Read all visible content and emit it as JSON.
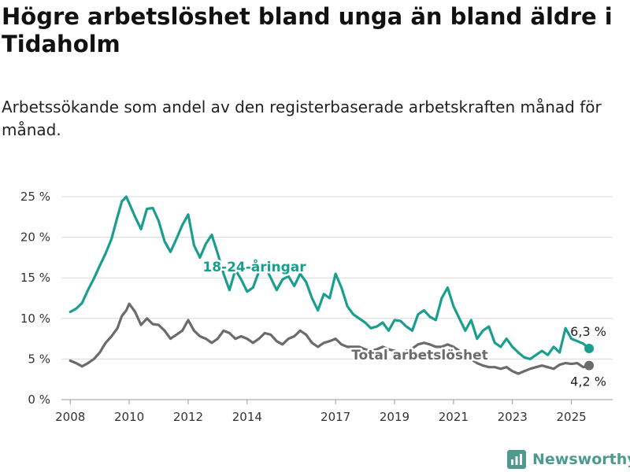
{
  "title": "Högre arbetslöshet bland unga än bland äldre i Tidaholm",
  "subtitle": "Arbetssökande som andel av den registerbaserade arbetskraften månad för månad.",
  "brand": {
    "name": "Newsworthy",
    "color": "#4e9a8f"
  },
  "chart_data": {
    "type": "line",
    "y_ticks": [
      "0 %",
      "5 %",
      "10 %",
      "15 %",
      "20 %",
      "25 %"
    ],
    "y_tick_values": [
      0,
      5,
      10,
      15,
      20,
      25
    ],
    "ylim": [
      0,
      25
    ],
    "x_ticks": [
      "2008",
      "2010",
      "2012",
      "2014",
      "2017",
      "2019",
      "2021",
      "2023",
      "2025"
    ],
    "x_tick_values": [
      2008,
      2010,
      2012,
      2014,
      2017,
      2019,
      2021,
      2023,
      2025
    ],
    "xlim": [
      2007.7,
      2026.4
    ],
    "grid": true,
    "series": [
      {
        "name": "18-24-åringar",
        "color": "#1a9e8e",
        "end_label": "6,3 %",
        "x": [
          2008.0,
          2008.2,
          2008.4,
          2008.6,
          2008.8,
          2009.0,
          2009.2,
          2009.4,
          2009.6,
          2009.75,
          2009.9,
          2010.0,
          2010.2,
          2010.4,
          2010.6,
          2010.8,
          2011.0,
          2011.2,
          2011.4,
          2011.6,
          2011.8,
          2012.0,
          2012.2,
          2012.4,
          2012.6,
          2012.8,
          2013.0,
          2013.2,
          2013.4,
          2013.6,
          2013.8,
          2014.0,
          2014.2,
          2014.4,
          2014.6,
          2014.8,
          2015.0,
          2015.2,
          2015.4,
          2015.6,
          2015.8,
          2016.0,
          2016.2,
          2016.4,
          2016.6,
          2016.8,
          2017.0,
          2017.2,
          2017.4,
          2017.6,
          2017.8,
          2018.0,
          2018.2,
          2018.4,
          2018.6,
          2018.8,
          2019.0,
          2019.2,
          2019.4,
          2019.6,
          2019.8,
          2020.0,
          2020.2,
          2020.4,
          2020.6,
          2020.8,
          2021.0,
          2021.2,
          2021.4,
          2021.6,
          2021.8,
          2022.0,
          2022.2,
          2022.4,
          2022.6,
          2022.8,
          2023.0,
          2023.2,
          2023.4,
          2023.6,
          2023.8,
          2024.0,
          2024.2,
          2024.4,
          2024.6,
          2024.8,
          2025.0,
          2025.2,
          2025.4,
          2025.6
        ],
        "y": [
          10.8,
          11.2,
          11.9,
          13.5,
          14.9,
          16.5,
          18.0,
          19.8,
          22.5,
          24.4,
          25.0,
          24.2,
          22.5,
          21.0,
          23.5,
          23.6,
          22.0,
          19.5,
          18.2,
          19.8,
          21.5,
          22.8,
          19.0,
          17.5,
          19.2,
          20.3,
          18.0,
          15.5,
          13.5,
          16.0,
          14.8,
          13.3,
          13.8,
          15.8,
          16.5,
          15.0,
          13.5,
          14.8,
          15.2,
          14.0,
          15.5,
          14.5,
          12.5,
          11.0,
          13.0,
          12.5,
          15.5,
          13.8,
          11.5,
          10.5,
          10.0,
          9.5,
          8.8,
          9.0,
          9.5,
          8.5,
          9.8,
          9.7,
          9.0,
          8.5,
          10.5,
          11.0,
          10.2,
          9.8,
          12.5,
          13.8,
          11.5,
          10.0,
          8.5,
          9.8,
          7.5,
          8.5,
          9.0,
          7.0,
          6.5,
          7.5,
          6.5,
          5.8,
          5.2,
          5.0,
          5.5,
          6.0,
          5.5,
          6.5,
          5.8,
          8.8,
          7.5,
          7.2,
          6.9,
          6.3
        ]
      },
      {
        "name": "Total arbetslöshet",
        "color": "#6b6b6e",
        "end_label": "4,2 %",
        "x": [
          2008.0,
          2008.2,
          2008.4,
          2008.6,
          2008.8,
          2009.0,
          2009.2,
          2009.4,
          2009.6,
          2009.75,
          2009.9,
          2010.0,
          2010.2,
          2010.4,
          2010.6,
          2010.8,
          2011.0,
          2011.2,
          2011.4,
          2011.6,
          2011.8,
          2012.0,
          2012.2,
          2012.4,
          2012.6,
          2012.8,
          2013.0,
          2013.2,
          2013.4,
          2013.6,
          2013.8,
          2014.0,
          2014.2,
          2014.4,
          2014.6,
          2014.8,
          2015.0,
          2015.2,
          2015.4,
          2015.6,
          2015.8,
          2016.0,
          2016.2,
          2016.4,
          2016.6,
          2016.8,
          2017.0,
          2017.2,
          2017.4,
          2017.6,
          2017.8,
          2018.0,
          2018.2,
          2018.4,
          2018.6,
          2018.8,
          2019.0,
          2019.2,
          2019.4,
          2019.6,
          2019.8,
          2020.0,
          2020.2,
          2020.4,
          2020.6,
          2020.8,
          2021.0,
          2021.2,
          2021.4,
          2021.6,
          2021.8,
          2022.0,
          2022.2,
          2022.4,
          2022.6,
          2022.8,
          2023.0,
          2023.2,
          2023.4,
          2023.6,
          2023.8,
          2024.0,
          2024.2,
          2024.4,
          2024.6,
          2024.8,
          2025.0,
          2025.2,
          2025.4,
          2025.6
        ],
        "y": [
          4.8,
          4.5,
          4.1,
          4.5,
          5.0,
          5.8,
          7.0,
          7.8,
          8.8,
          10.3,
          11.0,
          11.8,
          10.8,
          9.2,
          10.0,
          9.3,
          9.2,
          8.5,
          7.5,
          8.0,
          8.5,
          9.8,
          8.5,
          7.8,
          7.5,
          7.0,
          7.5,
          8.5,
          8.2,
          7.5,
          7.8,
          7.5,
          7.0,
          7.5,
          8.2,
          8.0,
          7.2,
          6.8,
          7.5,
          7.8,
          8.5,
          8.0,
          7.0,
          6.5,
          7.0,
          7.2,
          7.5,
          6.8,
          6.5,
          6.5,
          6.5,
          6.2,
          6.0,
          6.2,
          6.5,
          6.2,
          6.0,
          5.8,
          6.0,
          6.3,
          6.8,
          7.0,
          6.8,
          6.5,
          6.5,
          6.8,
          6.5,
          6.0,
          5.5,
          5.0,
          4.5,
          4.2,
          4.0,
          4.0,
          3.8,
          4.0,
          3.5,
          3.2,
          3.5,
          3.8,
          4.0,
          4.2,
          4.0,
          3.8,
          4.3,
          4.5,
          4.4,
          4.5,
          4.0,
          4.2
        ]
      }
    ]
  }
}
